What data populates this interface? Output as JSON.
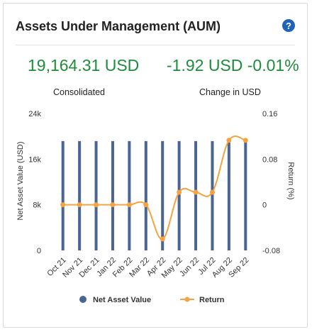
{
  "header": {
    "title": "Assets Under Management (AUM)",
    "help_icon": "question-circle-icon"
  },
  "summary": {
    "total_value": "19,164.31 USD",
    "total_label": "Consolidated",
    "change_value": "-1.92 USD -0.01%",
    "change_label": "Change in USD"
  },
  "colors": {
    "bar": "#4a6494",
    "line": "#f4a340",
    "positive": "#1e8c3a",
    "accent": "#1e63b8"
  },
  "chart_data": {
    "type": "bar",
    "categories": [
      "Oct 21",
      "Nov 21",
      "Dec 21",
      "Jan 22",
      "Feb 22",
      "Mar 22",
      "Apr 22",
      "May 22",
      "Jun 22",
      "Jul 22",
      "Aug 22",
      "Sep 22"
    ],
    "series": [
      {
        "name": "Net Asset Value",
        "type": "bar",
        "axis": "left",
        "values": [
          19164,
          19164,
          19164,
          19164,
          19164,
          19164,
          19164,
          19164,
          19164,
          19164,
          19164,
          19164
        ]
      },
      {
        "name": "Return",
        "type": "line",
        "axis": "right",
        "values": [
          0.0,
          0.0,
          0.0,
          0.0,
          0.0,
          0.0,
          -0.06,
          0.022,
          0.022,
          0.022,
          0.113,
          0.113
        ]
      }
    ],
    "ylabel": "Net Asset Value (USD)",
    "y2label": "Return (%)",
    "ylim": [
      0,
      24000
    ],
    "y2lim": [
      -0.08,
      0.16
    ],
    "yticks": [
      "0",
      "8k",
      "16k",
      "24k"
    ],
    "y2ticks": [
      "-0.08",
      "0",
      "0.08",
      "0.16"
    ],
    "grid": false,
    "legend": "bottom"
  }
}
